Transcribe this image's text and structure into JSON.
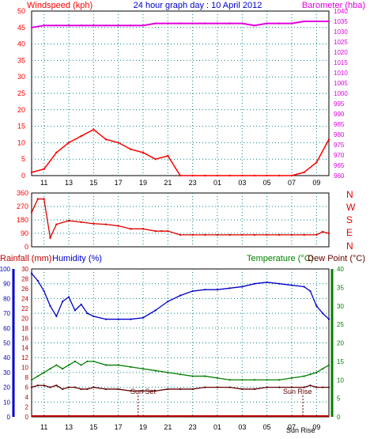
{
  "header": {
    "left_label": "Windspeed (kph)",
    "title": "24 hour graph day : 10 April 2012",
    "right_label": "Barometer (hba)"
  },
  "wind_dir_labels": [
    "N",
    "W",
    "S",
    "E",
    "N"
  ],
  "bottom_header": {
    "rainfall": "Rainfall (mm)",
    "humidity": "Humidity (%)",
    "temperature": "Temperature (°C)",
    "dewpoint": "Dew Point (°C)"
  },
  "annotations": {
    "sunset": "Sun Set",
    "sunrise": "Sun Rise",
    "sunrise_tick": "Sun Rise"
  },
  "colors": {
    "wind_gust": "#ff0000",
    "wind_avg": "#0000c8",
    "wind_low": "#008000",
    "barometer": "#e000e0",
    "wind_dir": "#e00000",
    "humidity": "#0000c8",
    "temperature": "#008000",
    "dewpoint": "#600000",
    "rainfall": "#c00000",
    "grid": "#008080",
    "left_axis": "#0000c8",
    "right_axis": "#008000"
  },
  "chart_data": [
    {
      "type": "line",
      "title": "24 hour graph day : 10 April 2012",
      "ylabel": "Windspeed (kph)",
      "y2label": "Barometer (hba)",
      "xticks": [
        "11",
        "13",
        "15",
        "17",
        "19",
        "21",
        "23",
        "01",
        "03",
        "05",
        "07",
        "09"
      ],
      "ylim": [
        0,
        50
      ],
      "y2lim": [
        960,
        1040
      ],
      "yticks": [
        0,
        5,
        10,
        15,
        20,
        25,
        30,
        35,
        40,
        45,
        50
      ],
      "y2ticks": [
        960,
        965,
        970,
        975,
        980,
        985,
        990,
        995,
        1000,
        1005,
        1010,
        1015,
        1020,
        1025,
        1030,
        1035,
        1040
      ],
      "x_hours": [
        0,
        1,
        2,
        3,
        4,
        5,
        6,
        7,
        8,
        9,
        10,
        11,
        12,
        13,
        14,
        15,
        16,
        17,
        18,
        19,
        20,
        21,
        22,
        23,
        24
      ],
      "series": [
        {
          "name": "Windspeed (kph)",
          "values": [
            1,
            2,
            7,
            10,
            12,
            14,
            11,
            10,
            8,
            7,
            5,
            6,
            0,
            0,
            0,
            0,
            0,
            0,
            0,
            0,
            0,
            0,
            1,
            4,
            11
          ]
        },
        {
          "name": "Barometer (hba)",
          "values": [
            1032,
            1033,
            1033,
            1033,
            1033,
            1033,
            1033,
            1033,
            1033,
            1033,
            1034,
            1034,
            1034,
            1034,
            1034,
            1034,
            1034,
            1034,
            1033,
            1034,
            1034,
            1034,
            1035,
            1035,
            1035
          ]
        }
      ]
    },
    {
      "type": "line",
      "xticks": [
        "11",
        "13",
        "15",
        "17",
        "19",
        "21",
        "23",
        "01",
        "03",
        "05",
        "07",
        "09"
      ],
      "ylim": [
        0,
        360
      ],
      "yticks": [
        0,
        90,
        180,
        270,
        360
      ],
      "x_hours": [
        0,
        0.5,
        1,
        1.5,
        2,
        3,
        4,
        5,
        6,
        7,
        8,
        9,
        10,
        10.5,
        11,
        12,
        13,
        14,
        15,
        16,
        17,
        18,
        19,
        20,
        21,
        22,
        23,
        23.5,
        24
      ],
      "series": [
        {
          "name": "Wind direction",
          "values": [
            230,
            320,
            320,
            60,
            150,
            175,
            165,
            155,
            150,
            140,
            120,
            120,
            105,
            105,
            105,
            80,
            80,
            80,
            80,
            80,
            80,
            80,
            80,
            80,
            80,
            80,
            80,
            100,
            90
          ]
        }
      ]
    },
    {
      "type": "line",
      "xticks": [
        "11",
        "13",
        "15",
        "17",
        "19",
        "21",
        "23",
        "01",
        "03",
        "05",
        "07",
        "09"
      ],
      "ylabel": "Humidity (%)",
      "y2label": "Temperature (°C)",
      "ylim_humidity": [
        0,
        100
      ],
      "ylim_rainfall": [
        0,
        30
      ],
      "y2lim": [
        0,
        40
      ],
      "humidity_ticks": [
        0,
        10,
        20,
        30,
        40,
        50,
        60,
        70,
        80,
        90,
        100
      ],
      "rainfall_ticks": [
        0,
        2,
        4,
        6,
        8,
        10,
        12,
        14,
        16,
        18,
        20,
        22,
        24,
        26,
        28,
        30
      ],
      "temp_ticks": [
        0,
        5,
        10,
        15,
        20,
        25,
        30,
        35,
        40
      ],
      "x_hours": [
        0,
        0.5,
        1,
        1.5,
        2,
        2.5,
        3,
        3.5,
        4,
        4.5,
        5,
        6,
        7,
        8,
        9,
        10,
        11,
        12,
        13,
        14,
        15,
        16,
        17,
        18,
        19,
        20,
        21,
        22,
        22.5,
        23,
        23.5,
        24
      ],
      "series": [
        {
          "name": "Humidity (%)",
          "values": [
            97,
            92,
            85,
            75,
            68,
            78,
            81,
            72,
            76,
            70,
            68,
            66,
            66,
            66,
            67,
            72,
            78,
            82,
            85,
            86,
            86,
            87,
            88,
            90,
            91,
            90,
            89,
            88,
            85,
            75,
            70,
            66
          ]
        },
        {
          "name": "Temperature (°C)",
          "values": [
            10,
            11,
            12,
            13,
            14,
            13,
            14,
            15,
            14,
            15,
            15,
            14,
            14,
            13.5,
            13,
            12.5,
            12,
            11.5,
            11,
            11,
            10.5,
            10,
            10,
            10,
            10,
            10,
            10.5,
            11,
            11.5,
            12,
            13,
            14
          ]
        },
        {
          "name": "Dew Point (°C)",
          "values": [
            8,
            8.5,
            8.5,
            8,
            8.5,
            7.5,
            8,
            8,
            7.5,
            7.5,
            8,
            7.5,
            7.5,
            7,
            7,
            7,
            7.5,
            7.5,
            7.5,
            8,
            8,
            8,
            7.5,
            7.5,
            8,
            8,
            8,
            8,
            8.5,
            8,
            8,
            8
          ]
        },
        {
          "name": "Rainfall (mm)",
          "values": [
            0,
            0,
            0,
            0,
            0,
            0,
            0,
            0,
            0,
            0,
            0,
            0,
            0,
            0,
            0,
            0,
            0,
            0,
            0,
            0,
            0,
            0,
            0,
            0,
            0,
            0,
            0,
            0,
            0,
            0,
            0,
            0
          ]
        }
      ]
    }
  ]
}
